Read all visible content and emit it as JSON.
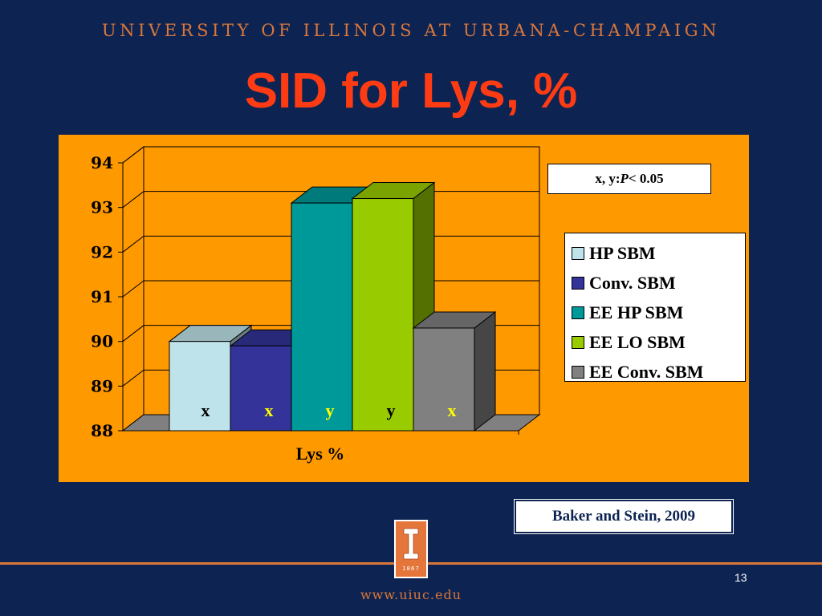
{
  "header": {
    "university": "UNIVERSITY OF ILLINOIS AT URBANA-CHAMPAIGN"
  },
  "slide": {
    "title": "SID for Lys, %",
    "page_number": "13"
  },
  "footer": {
    "website": "www.uiuc.edu",
    "logo_year": "1867"
  },
  "citation": "Baker and Stein, 2009",
  "note": {
    "prefix": "x, y: ",
    "p": "P",
    "suffix": " < 0.05"
  },
  "colors": {
    "background": "#0d2452",
    "panel": "#ff9900",
    "accent": "#d9763a",
    "title": "#ff3b14"
  },
  "chart_data": {
    "type": "bar",
    "xlabel": "Lys %",
    "ylim": [
      88,
      94
    ],
    "yticks": [
      88,
      89,
      90,
      91,
      92,
      93,
      94
    ],
    "grid": true,
    "legend_position": "right",
    "series": [
      {
        "name": "HP SBM",
        "value": 90.0,
        "color": "#bfe3ea",
        "label": "x",
        "label_color": "#000000"
      },
      {
        "name": "Conv. SBM",
        "value": 89.9,
        "color": "#333399",
        "label": "x",
        "label_color": "#ffff00"
      },
      {
        "name": "EE HP SBM",
        "value": 93.1,
        "color": "#009999",
        "label": "y",
        "label_color": "#ffff00"
      },
      {
        "name": "EE LO SBM",
        "value": 93.2,
        "color": "#99cc00",
        "label": "y",
        "label_color": "#000000"
      },
      {
        "name": "EE Conv. SBM",
        "value": 90.3,
        "color": "#808080",
        "label": "x",
        "label_color": "#ffff00"
      }
    ]
  }
}
